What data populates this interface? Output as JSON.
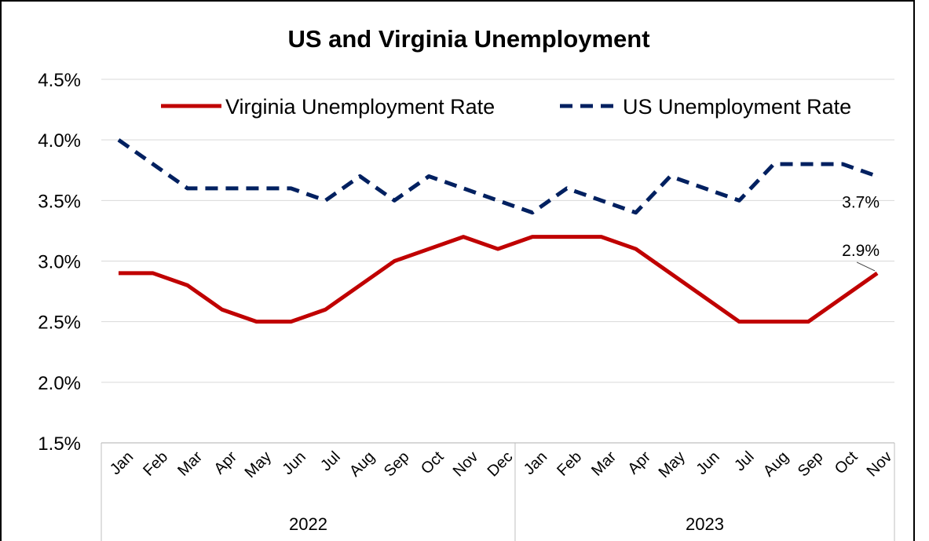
{
  "chart_data": {
    "type": "line",
    "title": "US and Virginia Unemployment",
    "categories": [
      "Jan",
      "Feb",
      "Mar",
      "Apr",
      "May",
      "Jun",
      "Jul",
      "Aug",
      "Sep",
      "Oct",
      "Nov",
      "Dec",
      "Jan",
      "Feb",
      "Mar",
      "Apr",
      "May",
      "Jun",
      "Jul",
      "Aug",
      "Sep",
      "Oct",
      "Nov"
    ],
    "groups": [
      {
        "label": "2022",
        "count": 12
      },
      {
        "label": "2023",
        "count": 11
      }
    ],
    "series": [
      {
        "name": "Virginia Unemployment Rate",
        "color": "#C00000",
        "style": "solid",
        "values": [
          2.9,
          2.9,
          2.8,
          2.6,
          2.5,
          2.5,
          2.6,
          2.8,
          3.0,
          3.1,
          3.2,
          3.1,
          3.2,
          3.2,
          3.2,
          3.1,
          2.9,
          2.7,
          2.5,
          2.5,
          2.5,
          2.7,
          2.9
        ],
        "end_label": "2.9%"
      },
      {
        "name": "US Unemployment Rate",
        "color": "#002060",
        "style": "dashed",
        "values": [
          4.0,
          3.8,
          3.6,
          3.6,
          3.6,
          3.6,
          3.5,
          3.7,
          3.5,
          3.7,
          3.6,
          3.5,
          3.4,
          3.6,
          3.5,
          3.4,
          3.7,
          3.6,
          3.5,
          3.8,
          3.8,
          3.8,
          3.7
        ],
        "end_label": "3.7%"
      }
    ],
    "yticks": [
      "1.5%",
      "2.0%",
      "2.5%",
      "3.0%",
      "3.5%",
      "4.0%",
      "4.5%"
    ],
    "ylim": [
      1.5,
      4.5
    ],
    "grid": true,
    "legend_position": "top"
  }
}
